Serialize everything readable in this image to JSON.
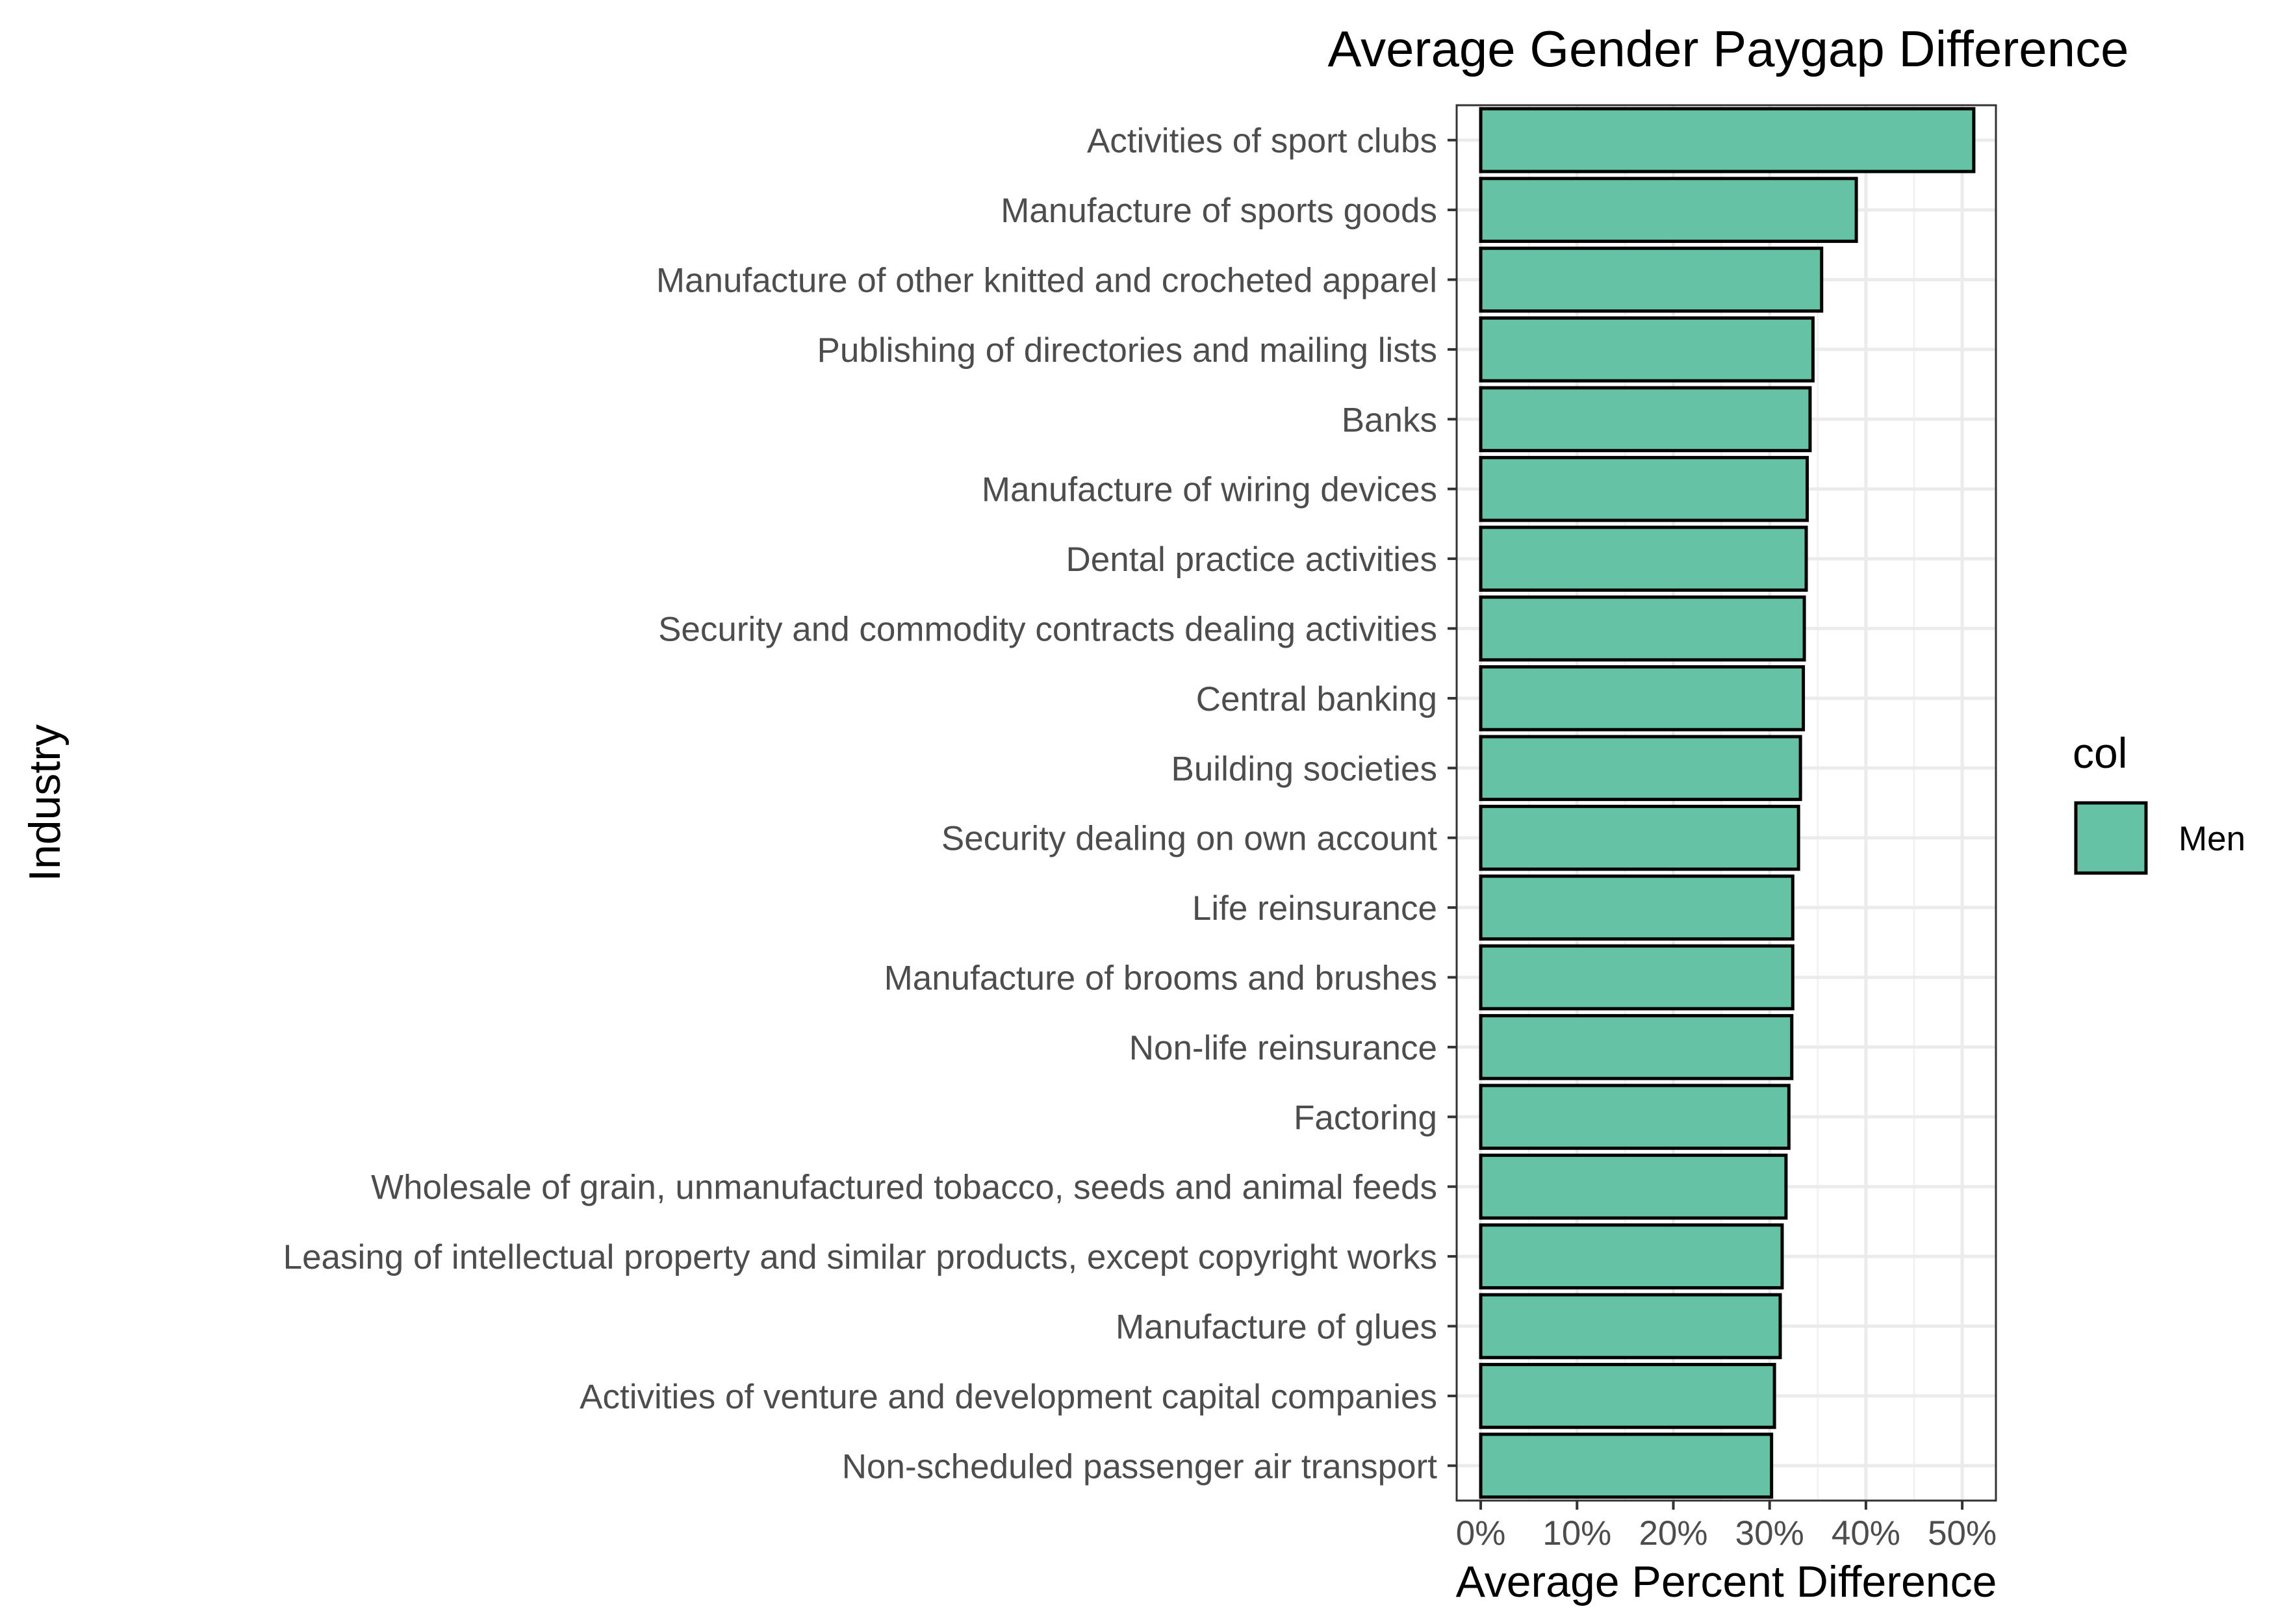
{
  "chart_data": {
    "type": "bar",
    "orientation": "horizontal",
    "title": "Average Gender Paygap Difference",
    "xlabel": "Average Percent Difference",
    "ylabel": "Industry",
    "xlim": [
      -2.5,
      53.5
    ],
    "x_ticks": [
      0,
      10,
      20,
      30,
      40,
      50
    ],
    "x_tick_labels": [
      "0%",
      "10%",
      "20%",
      "30%",
      "40%",
      "50%"
    ],
    "grid": true,
    "legend": {
      "title": "col",
      "position": "right",
      "entries": [
        {
          "label": "Men",
          "color": "#66C2A5"
        }
      ]
    },
    "categories": [
      "Activities of sport clubs",
      "Manufacture of sports goods",
      "Manufacture of other knitted and crocheted apparel",
      "Publishing of directories and mailing lists",
      "Banks",
      "Manufacture of wiring devices",
      "Dental practice activities",
      "Security and commodity contracts dealing activities",
      "Central banking",
      "Building societies",
      "Security dealing on own account",
      "Life reinsurance",
      "Manufacture of brooms and brushes",
      "Non-life reinsurance",
      "Factoring",
      "Wholesale of grain, unmanufactured tobacco, seeds and animal feeds",
      "Leasing of intellectual property and similar products, except copyright works",
      "Manufacture of glues",
      "Activities of venture and development capital companies",
      "Non-scheduled passenger air transport"
    ],
    "series": [
      {
        "name": "Men",
        "color": "#66C2A5",
        "values": [
          51.2,
          39.0,
          35.4,
          34.5,
          34.2,
          33.9,
          33.8,
          33.6,
          33.5,
          33.2,
          33.0,
          32.4,
          32.4,
          32.3,
          32.0,
          31.7,
          31.3,
          31.1,
          30.5,
          30.2
        ]
      }
    ]
  }
}
